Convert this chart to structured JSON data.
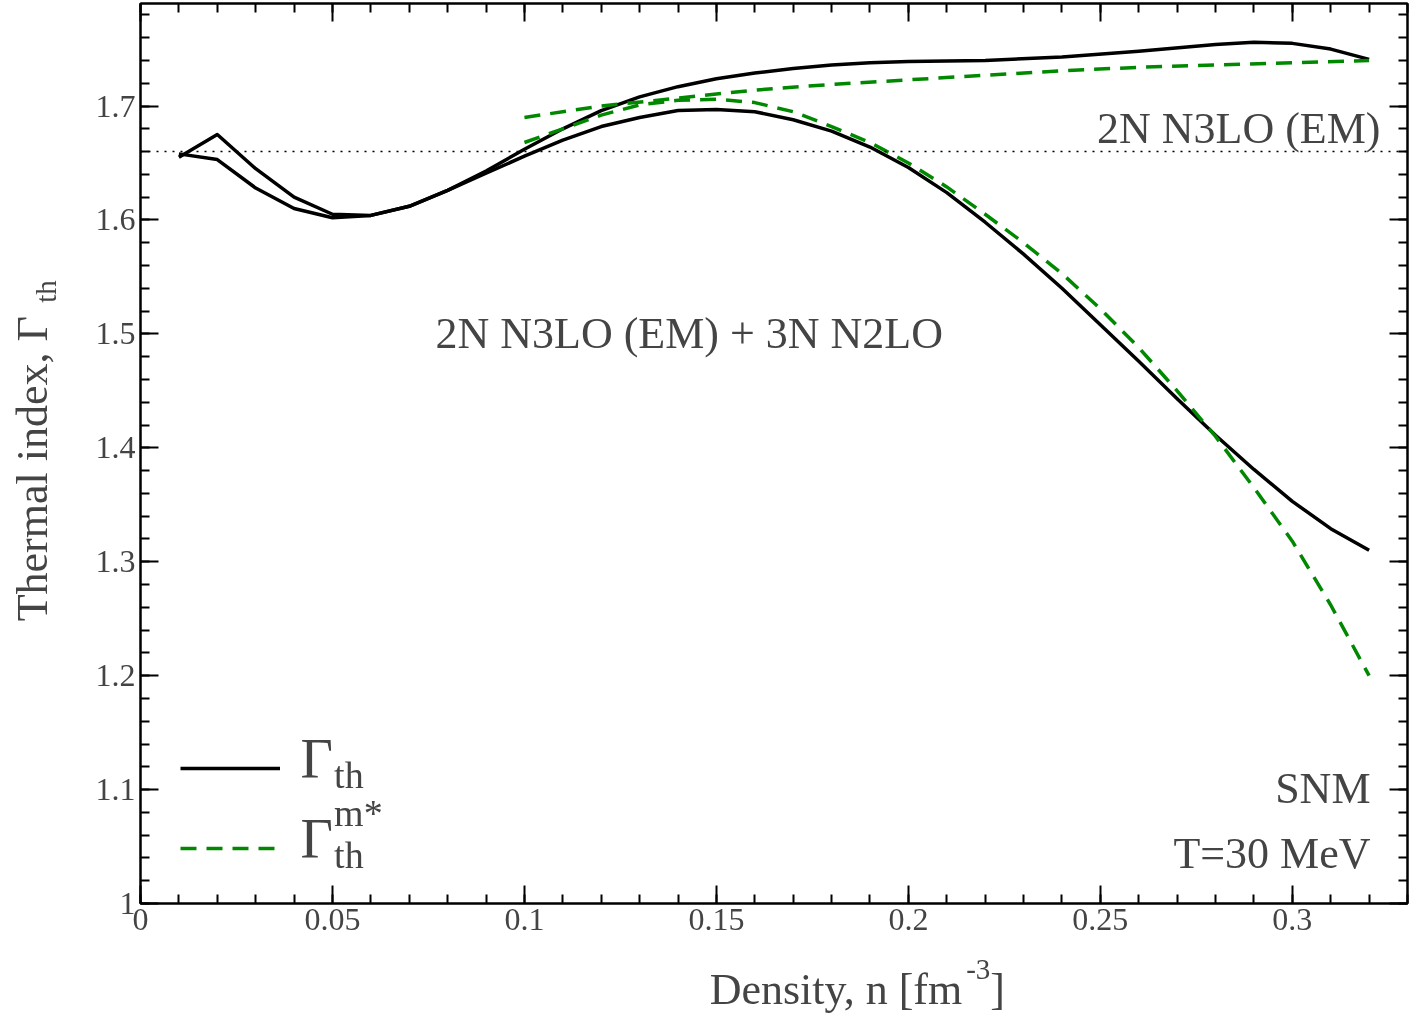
{
  "chart_data": {
    "type": "line",
    "xlabel": "Density, n [fm$^{-3}$]",
    "ylabel": "Thermal index, Γ$_{th}$",
    "xlim": [
      0,
      0.33
    ],
    "ylim": [
      1,
      1.79
    ],
    "xticks": [
      0,
      0.05,
      0.1,
      0.15,
      0.2,
      0.25,
      0.3
    ],
    "yticks": [
      1,
      1.1,
      1.2,
      1.3,
      1.4,
      1.5,
      1.6,
      1.7
    ],
    "grid": false,
    "legend": "bottom left",
    "series": [
      {
        "name": "Γ$_{th}$",
        "color": "#000000",
        "line_style": "solid",
        "x": [
          0.01,
          0.02,
          0.03,
          0.04,
          0.05,
          0.06,
          0.07,
          0.08,
          0.09,
          0.1,
          0.11,
          0.12,
          0.13,
          0.14,
          0.15,
          0.16,
          0.17,
          0.18,
          0.19,
          0.2,
          0.22,
          0.24,
          0.26,
          0.28,
          0.29,
          0.3,
          0.31,
          0.32
        ],
        "values": [
          1.655,
          1.675,
          1.645,
          1.62,
          1.605,
          1.604,
          1.612,
          1.626,
          1.643,
          1.662,
          1.68,
          1.696,
          1.708,
          1.717,
          1.724,
          1.729,
          1.733,
          1.736,
          1.738,
          1.739,
          1.74,
          1.743,
          1.748,
          1.754,
          1.756,
          1.755,
          1.75,
          1.741
        ]
      },
      {
        "color": "#000000",
        "line_style": "solid",
        "x": [
          0.01,
          0.02,
          0.03,
          0.04,
          0.05,
          0.06,
          0.07,
          0.08,
          0.09,
          0.1,
          0.11,
          0.12,
          0.13,
          0.14,
          0.15,
          0.16,
          0.17,
          0.18,
          0.19,
          0.2,
          0.21,
          0.22,
          0.23,
          0.24,
          0.25,
          0.26,
          0.27,
          0.28,
          0.29,
          0.3,
          0.31,
          0.32
        ],
        "values": [
          1.658,
          1.653,
          1.628,
          1.61,
          1.602,
          1.604,
          1.612,
          1.626,
          1.641,
          1.656,
          1.67,
          1.682,
          1.69,
          1.696,
          1.697,
          1.695,
          1.688,
          1.678,
          1.664,
          1.646,
          1.624,
          1.598,
          1.57,
          1.54,
          1.508,
          1.476,
          1.443,
          1.411,
          1.381,
          1.353,
          1.329,
          1.31
        ]
      },
      {
        "name": "Γ$^{m*}$$_{th}$",
        "color": "#008800",
        "line_style": "dashed",
        "x": [
          0.1,
          0.12,
          0.14,
          0.16,
          0.18,
          0.2,
          0.22,
          0.24,
          0.26,
          0.28,
          0.3,
          0.32
        ],
        "values": [
          1.69,
          1.7,
          1.707,
          1.714,
          1.719,
          1.723,
          1.727,
          1.731,
          1.734,
          1.736,
          1.738,
          1.74
        ]
      },
      {
        "color": "#008800",
        "line_style": "dashed",
        "x": [
          0.1,
          0.11,
          0.12,
          0.13,
          0.14,
          0.15,
          0.16,
          0.17,
          0.18,
          0.19,
          0.2,
          0.21,
          0.22,
          0.23,
          0.24,
          0.25,
          0.26,
          0.27,
          0.28,
          0.29,
          0.3,
          0.31,
          0.32
        ],
        "values": [
          1.668,
          1.68,
          1.692,
          1.701,
          1.705,
          1.706,
          1.703,
          1.695,
          1.682,
          1.668,
          1.65,
          1.629,
          1.605,
          1.58,
          1.553,
          1.522,
          1.488,
          1.45,
          1.41,
          1.365,
          1.318,
          1.262,
          1.2
        ]
      }
    ],
    "ref_lines": [
      {
        "axis": "y",
        "value": 1.66,
        "color": "#000000",
        "line_style": "dotted"
      }
    ],
    "annotations": [
      "2N N3LO (EM)",
      "2N N3LO (EM) + 3N N2LO",
      "SNM",
      "T=30 MeV"
    ]
  }
}
